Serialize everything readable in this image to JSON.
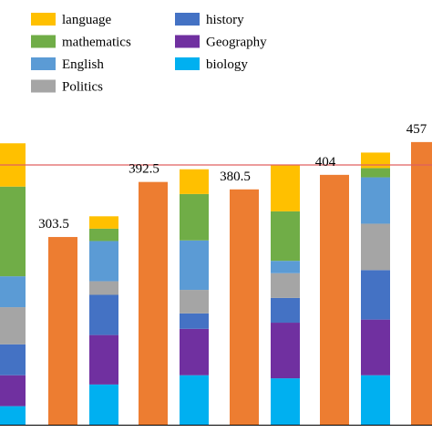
{
  "chart_data": {
    "type": "bar",
    "title": "",
    "xlabel": "",
    "ylabel": "",
    "ylim": [
      0,
      470
    ],
    "reference_line": {
      "value": 420,
      "color": "#e06060"
    },
    "legend": {
      "placement": "top-left",
      "entries": [
        {
          "name": "language",
          "color": "#ffc000"
        },
        {
          "name": "mathematics",
          "color": "#70ad47"
        },
        {
          "name": "English",
          "color": "#5b9bd5"
        },
        {
          "name": "Politics",
          "color": "#a5a5a5"
        },
        {
          "name": "history",
          "color": "#4472c4"
        },
        {
          "name": "Geography",
          "color": "#7030a0"
        },
        {
          "name": "biology",
          "color": "#00b0f0"
        }
      ]
    },
    "totals_color": "#ed7d31",
    "totals": [
      {
        "group": 1,
        "value": 303.5,
        "label": "303.5"
      },
      {
        "group": 2,
        "value": 392.5,
        "label": "392.5"
      },
      {
        "group": 3,
        "value": 380.5,
        "label": "380.5"
      },
      {
        "group": 4,
        "value": 404,
        "label": "404"
      },
      {
        "group": 5,
        "value": 457,
        "label": "457"
      }
    ],
    "stacked_series_order": [
      "biology",
      "Geography",
      "history",
      "Politics",
      "English",
      "mathematics",
      "language"
    ],
    "stacks": [
      {
        "group": 0,
        "segments": {
          "biology": 30,
          "Geography": 50,
          "history": 50,
          "Politics": 60,
          "English": 50,
          "mathematics": 145,
          "language": 70
        }
      },
      {
        "group": 1,
        "segments": {
          "biology": 65,
          "Geography": 80,
          "history": 65,
          "Politics": 22,
          "English": 65,
          "mathematics": 20,
          "language": 20
        }
      },
      {
        "group": 2,
        "segments": {
          "biology": 80,
          "Geography": 75,
          "history": 25,
          "Politics": 38,
          "English": 80,
          "mathematics": 75,
          "language": 40
        }
      },
      {
        "group": 3,
        "segments": {
          "biology": 75,
          "Geography": 90,
          "history": 40,
          "Politics": 40,
          "English": 20,
          "mathematics": 80,
          "language": 75
        }
      },
      {
        "group": 4,
        "segments": {
          "biology": 80,
          "Geography": 90,
          "history": 80,
          "Politics": 75,
          "English": 75,
          "mathematics": 15,
          "language": 25
        }
      }
    ]
  }
}
